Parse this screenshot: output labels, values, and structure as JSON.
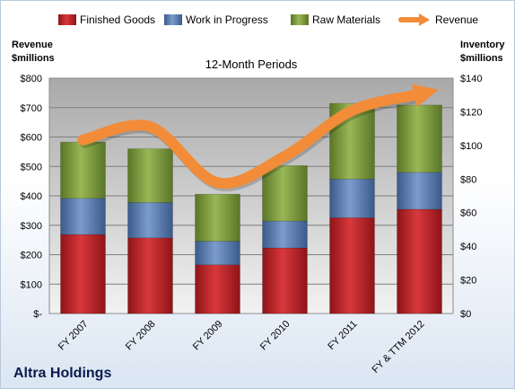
{
  "company": "Altra Holdings",
  "chart_data": {
    "type": "bar",
    "stacked": true,
    "title": "12-Month Periods",
    "categories": [
      "FY 2007",
      "FY 2008",
      "FY 2009",
      "FY 2010",
      "FY 2011",
      "FY & TTM 2012"
    ],
    "series": [
      {
        "name": "Finished Goods",
        "axis": "right",
        "color": "#c0282d",
        "values": [
          47,
          45,
          29,
          39,
          57,
          62
        ]
      },
      {
        "name": "Work in Progress",
        "axis": "right",
        "color": "#5a7fb5",
        "values": [
          21.5,
          21,
          14,
          16,
          23,
          22
        ]
      },
      {
        "name": "Raw Materials",
        "axis": "right",
        "color": "#7d9b3c",
        "values": [
          33.5,
          32,
          28,
          33,
          45,
          40
        ]
      },
      {
        "name": "Revenue",
        "type": "line",
        "axis": "left",
        "color": "#f28c38",
        "values": [
          590,
          635,
          445,
          535,
          690,
          745
        ]
      }
    ],
    "y_left": {
      "label_line1": "Revenue",
      "label_line2": "$millions",
      "range": [
        0,
        800
      ],
      "ticks": [
        "$-",
        "$100",
        "$200",
        "$300",
        "$400",
        "$500",
        "$600",
        "$700",
        "$800"
      ]
    },
    "y_right": {
      "label_line1": "Inventory",
      "label_line2": "$millions",
      "range": [
        0,
        140
      ],
      "ticks": [
        "$0",
        "$20",
        "$40",
        "$60",
        "$80",
        "$100",
        "$120",
        "$140"
      ]
    },
    "grid": true,
    "legend_position": "top"
  }
}
